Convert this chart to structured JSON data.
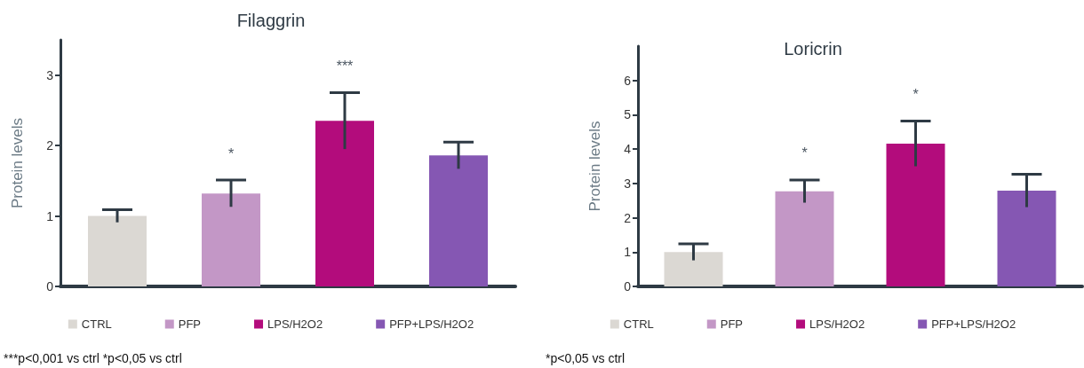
{
  "chart_data": [
    {
      "type": "bar",
      "title": "Filaggrin",
      "ylabel": "Protein levels",
      "categories": [
        null,
        null,
        null,
        null
      ],
      "stacked": true,
      "series": [
        {
          "name": "CTRL",
          "color": "#dbd8d3",
          "values": [
            1.0,
            null,
            null,
            null
          ],
          "errors": [
            0.09,
            null,
            null,
            null
          ]
        },
        {
          "name": "PFP",
          "color": "#c397c6",
          "values": [
            null,
            1.32,
            null,
            null
          ],
          "errors": [
            null,
            0.19,
            null,
            null
          ]
        },
        {
          "name": "LPS/H2O2",
          "color": "#b30c7c",
          "values": [
            null,
            null,
            2.35,
            null
          ],
          "errors": [
            null,
            null,
            0.4,
            null
          ]
        },
        {
          "name": "PFP+LPS/H2O2",
          "color": "#8557b3",
          "values": [
            null,
            null,
            null,
            1.86
          ],
          "errors": [
            null,
            null,
            null,
            0.19
          ]
        }
      ],
      "ylim": [
        0,
        3.5
      ],
      "yticks": [
        0,
        1,
        2,
        3
      ],
      "grid": false,
      "legend": "bottom",
      "annotations": [
        "*",
        "***",
        "***p<0,001 vs ctrl *p<0,05 vs ctrl"
      ]
    },
    {
      "type": "bar",
      "title": "Loricrin",
      "ylabel": "Protein levels",
      "categories": [
        null,
        null,
        null,
        null
      ],
      "stacked": true,
      "series": [
        {
          "name": "CTRL",
          "color": "#dbd8d3",
          "values": [
            1.0,
            null,
            null,
            null
          ],
          "errors": [
            0.24,
            null,
            null,
            null
          ]
        },
        {
          "name": "PFP",
          "color": "#c397c6",
          "values": [
            null,
            2.77,
            null,
            null
          ],
          "errors": [
            null,
            0.33,
            null,
            null
          ]
        },
        {
          "name": "LPS/H2O2",
          "color": "#b30c7c",
          "values": [
            null,
            null,
            4.16,
            null
          ],
          "errors": [
            null,
            null,
            0.66,
            null
          ]
        },
        {
          "name": "PFP+LPS/H2O2",
          "color": "#8557b3",
          "values": [
            null,
            null,
            null,
            2.79
          ],
          "errors": [
            null,
            null,
            null,
            0.48
          ]
        }
      ],
      "ylim": [
        0,
        7
      ],
      "yticks": [
        0,
        1,
        2,
        3,
        4,
        5,
        6
      ],
      "grid": false,
      "legend": "bottom",
      "annotations": [
        "*",
        "*",
        "*p<0,05 vs ctrl"
      ]
    }
  ]
}
